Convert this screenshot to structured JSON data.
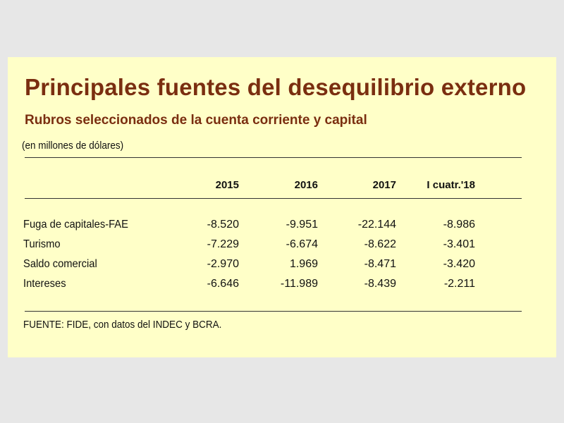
{
  "title": "Principales fuentes del desequilibrio externo",
  "subtitle": "Rubros seleccionados de la cuenta corriente y capital",
  "units": "(en millones de dólares)",
  "columns": [
    "2015",
    "2016",
    "2017",
    "I cuatr.'18"
  ],
  "rows": [
    {
      "label": "Fuga de capitales-FAE",
      "values": [
        "-8.520",
        "-9.951",
        "-22.144",
        "-8.986"
      ]
    },
    {
      "label": "Turismo",
      "values": [
        "-7.229",
        "-6.674",
        "-8.622",
        "-3.401"
      ]
    },
    {
      "label": "Saldo comercial",
      "values": [
        "-2.970",
        "1.969",
        "-8.471",
        "-3.420"
      ]
    },
    {
      "label": "Intereses",
      "values": [
        "-6.646",
        "-11.989",
        "-8.439",
        "-2.211"
      ]
    }
  ],
  "source": "FUENTE: FIDE, con datos del INDEC y BCRA.",
  "colors": {
    "title": "#7a2e10",
    "card_background": "#ffffc8",
    "page_background": "#e7e7e7"
  }
}
